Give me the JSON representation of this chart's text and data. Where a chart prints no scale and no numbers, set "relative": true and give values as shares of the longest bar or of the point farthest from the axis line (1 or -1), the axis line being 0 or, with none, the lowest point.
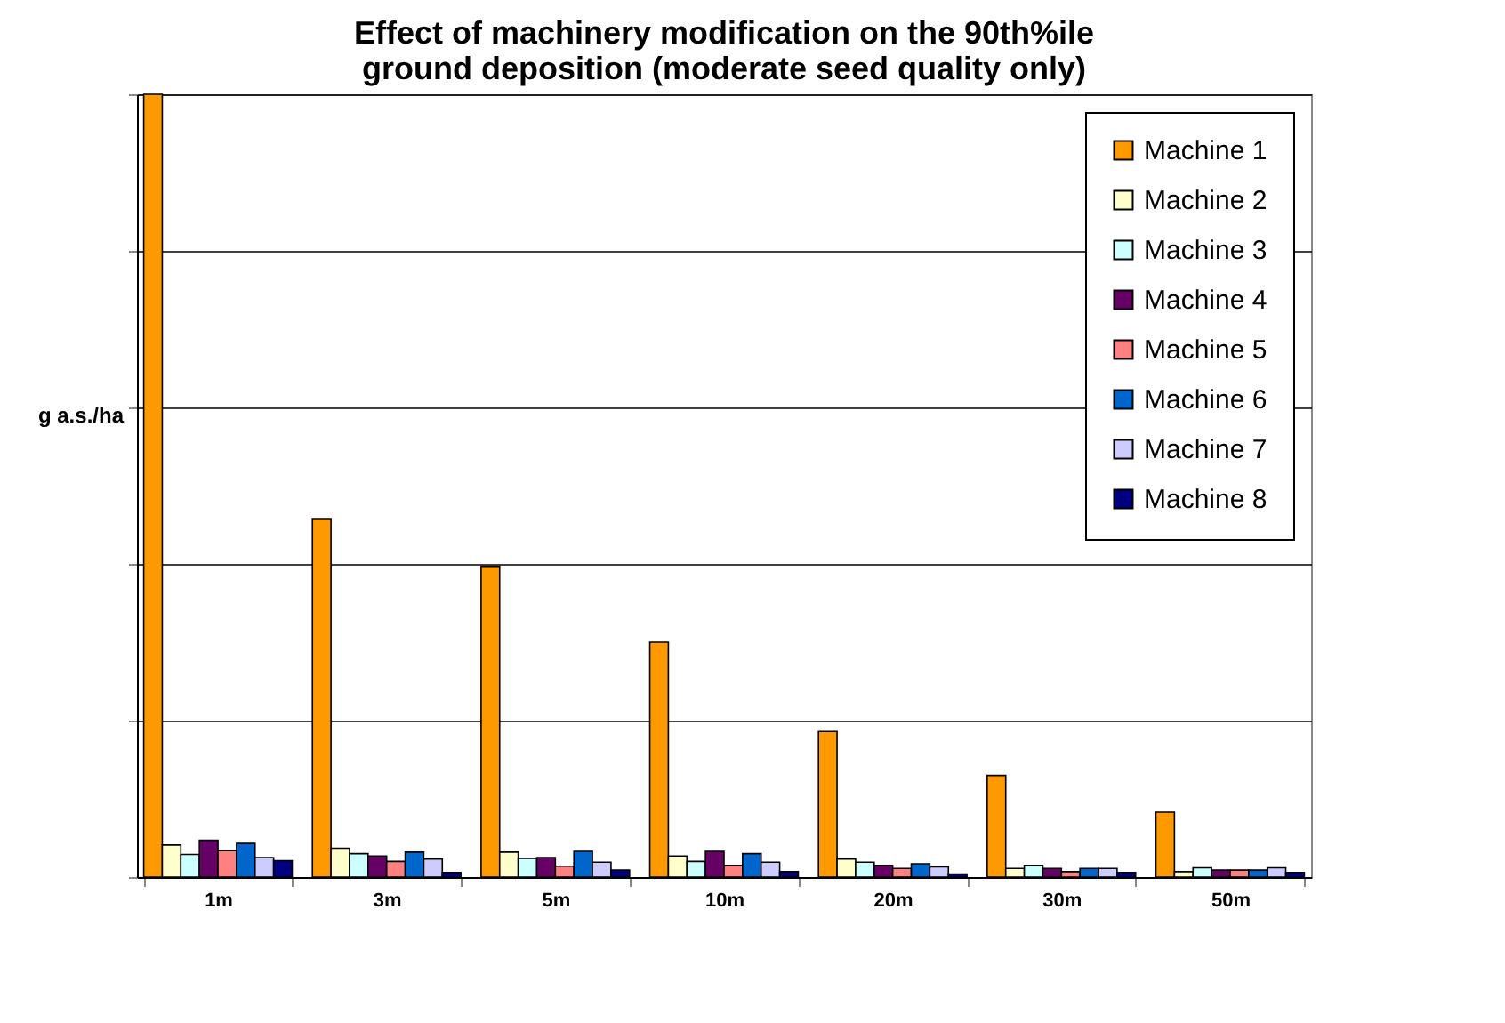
{
  "chart_data": {
    "type": "bar",
    "title": "Effect of machinery modification on the 90th%ile ground deposition (moderate seed quality only)",
    "ylabel": "g a.s./ha",
    "relative": true,
    "grid": "y",
    "legend": "top right",
    "categories": [
      "1m",
      "3m",
      "5m",
      "10m",
      "20m",
      "30m",
      "50m"
    ],
    "series": [
      {
        "name": "Machine 1",
        "color": "#ff9900",
        "values": [
          1,
          0.458,
          0.397,
          0.3,
          0.186,
          0.13,
          0.083
        ]
      },
      {
        "name": "Machine 2",
        "color": "#ffffcc",
        "values": [
          0.041,
          0.037,
          0.032,
          0.027,
          0.023,
          0.011,
          0.007
        ]
      },
      {
        "name": "Machine 3",
        "color": "#ccffff",
        "values": [
          0.029,
          0.03,
          0.024,
          0.02,
          0.019,
          0.015,
          0.012
        ]
      },
      {
        "name": "Machine 4",
        "color": "#660066",
        "values": [
          0.047,
          0.027,
          0.025,
          0.033,
          0.015,
          0.011,
          0.009
        ]
      },
      {
        "name": "Machine 5",
        "color": "#ff8080",
        "values": [
          0.034,
          0.02,
          0.014,
          0.015,
          0.011,
          0.007,
          0.009
        ]
      },
      {
        "name": "Machine 6",
        "color": "#0066cc",
        "values": [
          0.043,
          0.032,
          0.033,
          0.03,
          0.017,
          0.011,
          0.009
        ]
      },
      {
        "name": "Machine 7",
        "color": "#ccccff",
        "values": [
          0.025,
          0.023,
          0.019,
          0.019,
          0.013,
          0.011,
          0.012
        ]
      },
      {
        "name": "Machine 8",
        "color": "#000080",
        "values": [
          0.021,
          0.006,
          0.009,
          0.007,
          0.004,
          0.006,
          0.006
        ]
      }
    ]
  }
}
